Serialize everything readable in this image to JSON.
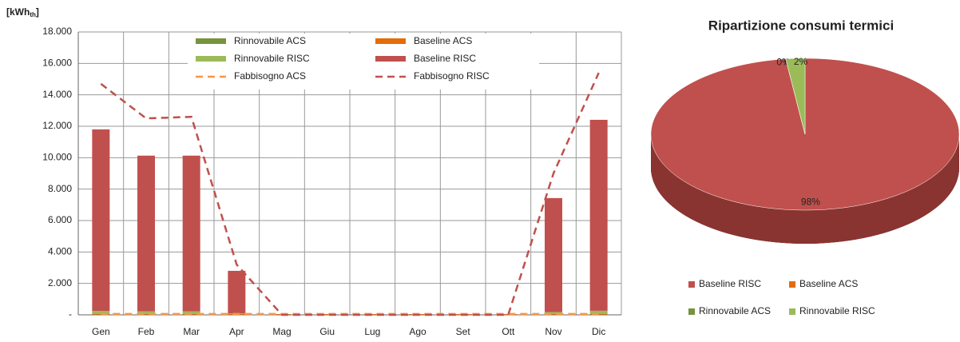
{
  "chart_data": [
    {
      "type": "bar",
      "y_label_parts": [
        "[kWh",
        "th",
        "]"
      ],
      "categories": [
        "Gen",
        "Feb",
        "Mar",
        "Apr",
        "Mag",
        "Giu",
        "Lug",
        "Ago",
        "Set",
        "Ott",
        "Nov",
        "Dic"
      ],
      "ylim": [
        0,
        18000
      ],
      "yticks": [
        {
          "value": 0,
          "label": "-"
        },
        {
          "value": 2000,
          "label": "2.000"
        },
        {
          "value": 4000,
          "label": "4.000"
        },
        {
          "value": 6000,
          "label": "6.000"
        },
        {
          "value": 8000,
          "label": "8.000"
        },
        {
          "value": 10000,
          "label": "10.000"
        },
        {
          "value": 12000,
          "label": "12.000"
        },
        {
          "value": 14000,
          "label": "14.000"
        },
        {
          "value": 16000,
          "label": "16.000"
        },
        {
          "value": 18000,
          "label": "18.000"
        }
      ],
      "grid": true,
      "stacked": true,
      "series": [
        {
          "name": "Rinnovabile ACS",
          "kind": "bar",
          "color": "#77933c",
          "values": [
            10,
            10,
            10,
            10,
            10,
            10,
            10,
            10,
            10,
            10,
            10,
            10
          ]
        },
        {
          "name": "Baseline ACS",
          "kind": "bar",
          "color": "#e46c0a",
          "values": [
            40,
            40,
            40,
            40,
            40,
            40,
            40,
            40,
            40,
            40,
            40,
            40
          ]
        },
        {
          "name": "Rinnovabile RISC",
          "kind": "bar",
          "color": "#9bbb59",
          "values": [
            200,
            180,
            180,
            50,
            0,
            0,
            0,
            0,
            0,
            0,
            130,
            210
          ]
        },
        {
          "name": "Baseline RISC",
          "kind": "bar",
          "color": "#c0504d",
          "values": [
            11550,
            9900,
            9900,
            2700,
            0,
            0,
            0,
            0,
            0,
            0,
            7250,
            12150
          ]
        },
        {
          "name": "Fabbisogno ACS",
          "kind": "line",
          "color": "#f79646",
          "values": [
            60,
            60,
            60,
            60,
            60,
            60,
            60,
            60,
            60,
            60,
            60,
            60
          ]
        },
        {
          "name": "Fabbisogno RISC",
          "kind": "line",
          "color": "#c0504d",
          "values": [
            14700,
            12500,
            12600,
            3200,
            0,
            0,
            0,
            0,
            0,
            0,
            9000,
            15400
          ]
        }
      ]
    },
    {
      "type": "pie",
      "title": "Ripartizione consumi termici",
      "categories": [
        "Baseline RISC",
        "Baseline ACS",
        "Rinnovabile ACS",
        "Rinnovabile RISC"
      ],
      "values": [
        98,
        0,
        0,
        2
      ],
      "value_labels": [
        "98%",
        "0%",
        "0%",
        "2%"
      ],
      "colors": [
        "#c0504d",
        "#e46c0a",
        "#77933c",
        "#9bbb59"
      ]
    }
  ]
}
